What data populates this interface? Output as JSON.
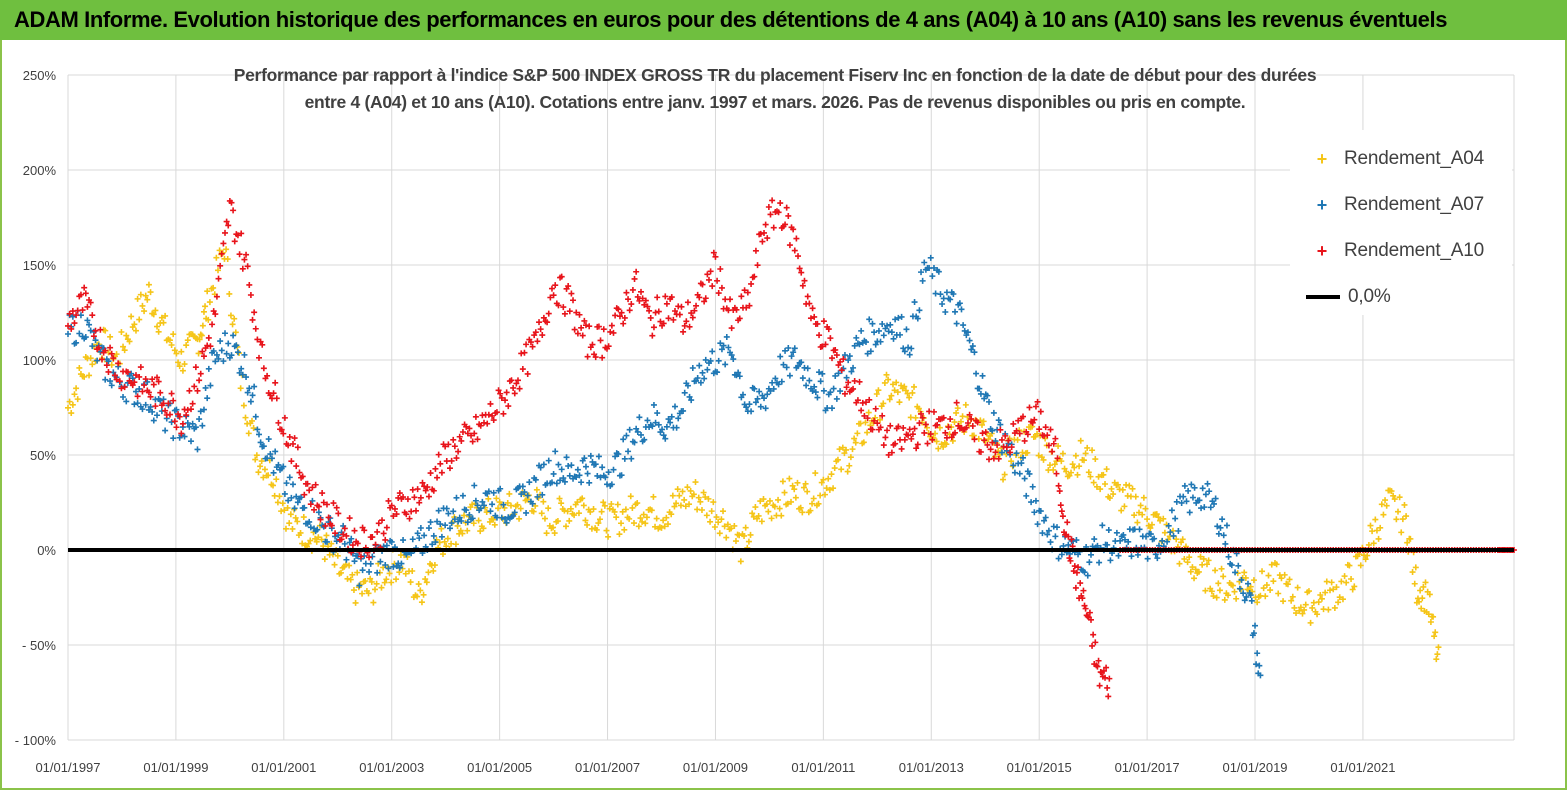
{
  "header": {
    "title": "ADAM Informe. Evolution historique des performances en euros pour des détentions de 4 ans (A04) à 10 ans (A10) sans les revenus éventuels"
  },
  "chart_data": {
    "type": "scatter",
    "title_line1": "Performance par rapport à l'indice S&P 500 INDEX GROSS TR  du placement Fiserv Inc en fonction de la date de début pour des durées",
    "title_line2": "entre 4 (A04) et 10 ans (A10). Cotations entre janv. 1997 et mars. 2026. Pas de revenus disponibles ou pris en compte.",
    "xlabel": "",
    "ylabel": "",
    "xlim": [
      1997.0,
      2023.8
    ],
    "ylim": [
      -100,
      250
    ],
    "y_ticks": [
      250,
      200,
      150,
      100,
      50,
      0,
      -50,
      -100
    ],
    "y_tick_labels": [
      "250%",
      "200%",
      "150%",
      "100%",
      "50%",
      "0%",
      "- 50%",
      "- 100%"
    ],
    "x_ticks": [
      1997,
      1999,
      2001,
      2003,
      2005,
      2007,
      2009,
      2011,
      2013,
      2015,
      2017,
      2019,
      2021
    ],
    "x_tick_labels": [
      "01/01/1997",
      "01/01/1999",
      "01/01/2001",
      "01/01/2003",
      "01/01/2005",
      "01/01/2007",
      "01/01/2009",
      "01/01/2011",
      "01/01/2013",
      "01/01/2015",
      "01/01/2017",
      "01/01/2019",
      "01/01/2021"
    ],
    "grid": true,
    "legend_position": "top-right",
    "series": [
      {
        "name": "Rendement_A04",
        "color": "#f5c518",
        "x": [
          1997.0,
          1997.3,
          1997.6,
          1997.9,
          1998.2,
          1998.5,
          1998.8,
          1999.1,
          1999.4,
          1999.6,
          1999.9,
          2000.2,
          2000.5,
          2000.8,
          2001.1,
          2001.4,
          2001.7,
          2002.0,
          2002.3,
          2002.6,
          2002.9,
          2003.2,
          2003.5,
          2003.8,
          2004.1,
          2004.4,
          2004.7,
          2005.0,
          2005.3,
          2005.6,
          2005.9,
          2006.2,
          2006.5,
          2006.8,
          2007.1,
          2007.4,
          2007.7,
          2008.0,
          2008.3,
          2008.6,
          2008.9,
          2009.2,
          2009.5,
          2009.8,
          2010.1,
          2010.4,
          2010.7,
          2011.0,
          2011.3,
          2011.6,
          2011.9,
          2012.2,
          2012.5,
          2012.8,
          2013.1,
          2013.4,
          2013.7,
          2014.0,
          2014.3,
          2014.6,
          2014.9,
          2015.2,
          2015.5,
          2015.8,
          2016.1,
          2016.4,
          2016.7,
          2017.0,
          2017.3,
          2017.6,
          2017.9,
          2018.2,
          2018.5,
          2018.8,
          2019.1,
          2019.4,
          2019.7,
          2020.0,
          2020.3,
          2020.6,
          2020.9,
          2021.2,
          2021.5,
          2021.8,
          2022.0,
          2022.2,
          2022.4
        ],
        "y": [
          75,
          95,
          110,
          100,
          120,
          135,
          115,
          100,
          110,
          130,
          160,
          90,
          50,
          40,
          15,
          10,
          5,
          -10,
          -20,
          -22,
          -10,
          -5,
          -25,
          0,
          10,
          15,
          18,
          20,
          22,
          28,
          15,
          20,
          25,
          18,
          15,
          20,
          22,
          18,
          25,
          30,
          22,
          15,
          0,
          20,
          25,
          30,
          28,
          35,
          45,
          55,
          70,
          85,
          80,
          75,
          60,
          65,
          70,
          60,
          45,
          55,
          60,
          50,
          45,
          50,
          40,
          30,
          25,
          20,
          10,
          0,
          -10,
          -15,
          -20,
          -15,
          -20,
          -15,
          -25,
          -30,
          -25,
          -20,
          -10,
          10,
          25,
          15,
          -20,
          -25,
          -60
        ]
      },
      {
        "name": "Rendement_A07",
        "color": "#1f77b4",
        "x": [
          1997.0,
          1997.3,
          1997.6,
          1997.9,
          1998.2,
          1998.5,
          1998.8,
          1999.1,
          1999.4,
          1999.7,
          2000.0,
          2000.3,
          2000.6,
          2000.9,
          2001.2,
          2001.5,
          2001.8,
          2002.1,
          2002.4,
          2002.7,
          2003.0,
          2003.3,
          2003.6,
          2003.9,
          2004.2,
          2004.5,
          2004.8,
          2005.1,
          2005.4,
          2005.7,
          2006.0,
          2006.3,
          2006.6,
          2006.9,
          2007.2,
          2007.5,
          2007.8,
          2008.1,
          2008.4,
          2008.7,
          2009.0,
          2009.3,
          2009.6,
          2009.9,
          2010.2,
          2010.5,
          2010.8,
          2011.1,
          2011.4,
          2011.7,
          2012.0,
          2012.3,
          2012.6,
          2012.9,
          2013.2,
          2013.5,
          2013.8,
          2014.1,
          2014.4,
          2014.7,
          2015.0,
          2015.3,
          2015.6,
          2015.9,
          2016.2,
          2016.5,
          2016.8,
          2017.1,
          2017.4,
          2017.7,
          2018.0,
          2018.3,
          2018.6,
          2018.9,
          2019.1
        ],
        "y": [
          115,
          120,
          100,
          90,
          85,
          80,
          70,
          65,
          60,
          100,
          110,
          95,
          60,
          40,
          25,
          20,
          10,
          5,
          -10,
          -5,
          0,
          -5,
          5,
          15,
          20,
          25,
          28,
          22,
          25,
          35,
          45,
          40,
          45,
          40,
          45,
          60,
          70,
          65,
          75,
          95,
          100,
          105,
          75,
          80,
          95,
          100,
          90,
          80,
          95,
          110,
          115,
          120,
          110,
          150,
          135,
          125,
          100,
          70,
          55,
          40,
          20,
          5,
          0,
          -5,
          5,
          0,
          5,
          0,
          10,
          25,
          30,
          20,
          -5,
          -25,
          -70
        ]
      },
      {
        "name": "Rendement_A10",
        "color": "#e8141b",
        "x": [
          1997.0,
          1997.3,
          1997.6,
          1997.9,
          1998.2,
          1998.5,
          1998.8,
          1999.1,
          1999.4,
          1999.7,
          2000.0,
          2000.3,
          2000.6,
          2000.9,
          2001.2,
          2001.5,
          2001.8,
          2002.1,
          2002.4,
          2002.7,
          2003.0,
          2003.3,
          2003.6,
          2003.9,
          2004.2,
          2004.5,
          2004.8,
          2005.1,
          2005.4,
          2005.7,
          2006.0,
          2006.3,
          2006.6,
          2006.9,
          2007.2,
          2007.5,
          2007.8,
          2008.1,
          2008.4,
          2008.7,
          2009.0,
          2009.3,
          2009.6,
          2009.9,
          2010.2,
          2010.5,
          2010.8,
          2011.1,
          2011.4,
          2011.7,
          2012.0,
          2012.3,
          2012.6,
          2012.9,
          2013.2,
          2013.5,
          2013.8,
          2014.1,
          2014.4,
          2014.7,
          2015.0,
          2015.3,
          2015.5,
          2015.7,
          2015.9,
          2016.1,
          2016.3
        ],
        "y": [
          120,
          130,
          110,
          95,
          90,
          85,
          80,
          70,
          90,
          120,
          180,
          150,
          100,
          75,
          50,
          30,
          20,
          10,
          5,
          5,
          20,
          25,
          30,
          45,
          55,
          60,
          70,
          80,
          95,
          110,
          140,
          130,
          110,
          110,
          120,
          140,
          120,
          130,
          120,
          130,
          150,
          120,
          130,
          170,
          180,
          160,
          120,
          110,
          90,
          80,
          65,
          55,
          60,
          65,
          65,
          70,
          60,
          55,
          55,
          65,
          70,
          50,
          10,
          -15,
          -35,
          -65,
          -70
        ]
      },
      {
        "name": "Rendement_A10",
        "color": "#e8141b",
        "x": [
          2016.5,
          2017.0,
          2017.5,
          2018.0,
          2018.5,
          2019.0,
          2019.5,
          2020.0,
          2020.5,
          2021.0,
          2021.5,
          2022.0,
          2022.5,
          2023.0,
          2023.5,
          2023.8
        ],
        "y": [
          0,
          0,
          0,
          0,
          0,
          0,
          0,
          0,
          0,
          0,
          0,
          0,
          0,
          0,
          0,
          0
        ]
      }
    ],
    "reference_line": {
      "name": "0,0%",
      "y": 0,
      "color": "#000000"
    }
  }
}
